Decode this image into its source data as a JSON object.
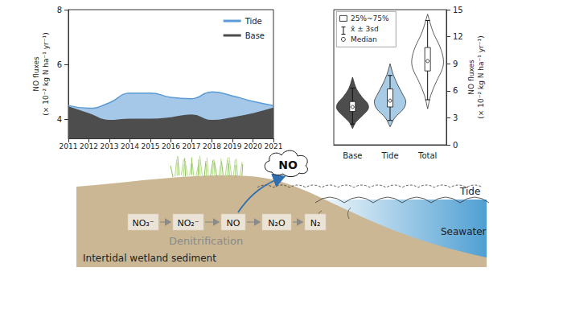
{
  "chart_data": [
    {
      "type": "line",
      "ylabel": "NO fluxes\n(× 10⁻² kg N ha⁻¹ yr⁻¹)",
      "x": [
        2011,
        2012,
        2013,
        2014,
        2015,
        2016,
        2017,
        2018,
        2019,
        2020,
        2021
      ],
      "xlim": [
        2011,
        2021
      ],
      "xticks": [
        2011,
        2012,
        2013,
        2014,
        2015,
        2016,
        2017,
        2018,
        2019,
        2020,
        2021
      ],
      "ylim": [
        3.3,
        8
      ],
      "yticks": [
        4,
        6,
        8
      ],
      "grid": false,
      "legend": "upper right",
      "series": [
        {
          "name": "Tide",
          "color": "#5b9bd5",
          "values": [
            4.5,
            4.4,
            4.6,
            4.95,
            4.95,
            4.8,
            4.75,
            5.0,
            4.85,
            4.65,
            4.5
          ]
        },
        {
          "name": "Base",
          "color": "#4d4d4d",
          "values": [
            4.45,
            4.2,
            3.95,
            4.0,
            4.0,
            4.05,
            4.15,
            3.95,
            4.05,
            4.2,
            4.4
          ]
        }
      ]
    },
    {
      "type": "violin",
      "ylabel": "NO fluxes\n(× 10⁻² kg N ha⁻¹ yr⁻¹)",
      "categories": [
        "Base",
        "Tide",
        "Total"
      ],
      "ylim": [
        0,
        15
      ],
      "yticks": [
        0,
        3,
        6,
        9,
        12,
        15
      ],
      "grid": false,
      "key": [
        "25%~75%",
        "x̄ ± 3sd",
        "Median"
      ],
      "groups": [
        {
          "color": "#4d4d4d",
          "q1": 3.7,
          "median": 4.2,
          "q3": 4.8,
          "whisker_low": 2.3,
          "whisker_high": 6.3,
          "density": [
            [
              1.8,
              0
            ],
            [
              2.5,
              0.2
            ],
            [
              3.2,
              0.6
            ],
            [
              4.0,
              1
            ],
            [
              4.6,
              0.95
            ],
            [
              5.3,
              0.6
            ],
            [
              6.2,
              0.25
            ],
            [
              7.5,
              0
            ]
          ]
        },
        {
          "color": "#a8cbe6",
          "q1": 4.2,
          "median": 4.9,
          "q3": 6.2,
          "whisker_low": 2.7,
          "whisker_high": 7.7,
          "density": [
            [
              2,
              0
            ],
            [
              3,
              0.3
            ],
            [
              4,
              0.85
            ],
            [
              4.8,
              1
            ],
            [
              5.6,
              0.8
            ],
            [
              6.6,
              0.5
            ],
            [
              7.8,
              0.2
            ],
            [
              9,
              0
            ]
          ]
        },
        {
          "color": "#ffffff",
          "q1": 8.2,
          "median": 9.3,
          "q3": 10.8,
          "whisker_low": 5,
          "whisker_high": 13.8,
          "density": [
            [
              4,
              0
            ],
            [
              5.5,
              0.2
            ],
            [
              7,
              0.55
            ],
            [
              8.5,
              0.95
            ],
            [
              9.5,
              1
            ],
            [
              10.8,
              0.8
            ],
            [
              12.5,
              0.35
            ],
            [
              14.5,
              0
            ]
          ]
        }
      ]
    }
  ],
  "diagram": {
    "emission": "NO",
    "species": [
      "NO₃⁻",
      "NO₂⁻",
      "NO",
      "N₂O",
      "N₂"
    ],
    "process": "Denitrification",
    "sediment": "Intertidal wetland sediment",
    "water": "Seawater",
    "tide": "Tide"
  }
}
